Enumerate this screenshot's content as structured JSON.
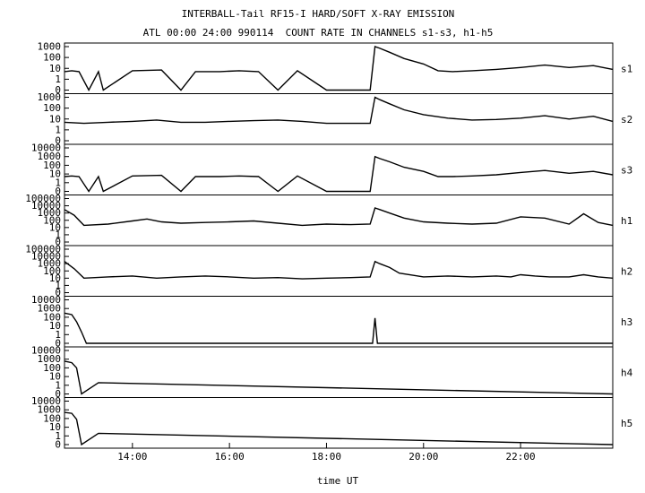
{
  "chart_data": {
    "type": "line",
    "title": "INTERBALL-Tail RF15-I HARD/SOFT X-RAY EMISSION",
    "subtitle": "ATL 00:00 24:00 990114  COUNT RATE IN CHANNELS s1-s3, h1-h5",
    "xlabel": "time UT",
    "x_ticks": [
      "14:00",
      "16:00",
      "18:00",
      "20:00",
      "22:00"
    ],
    "x_tick_hours": [
      14,
      16,
      18,
      20,
      22
    ],
    "xlim_hours": [
      12.6,
      23.9
    ],
    "y_scale": "log",
    "grid": false,
    "panels": [
      {
        "name": "s1",
        "y_ticks": [
          "1000",
          "100",
          "10",
          "1",
          "0"
        ],
        "x_hours": [
          12.6,
          12.75,
          12.9,
          13.1,
          13.3,
          13.4,
          14.0,
          14.6,
          15.0,
          15.3,
          15.8,
          16.2,
          16.6,
          17.0,
          17.4,
          18.0,
          18.9,
          19.0,
          19.1,
          19.3,
          19.6,
          20.0,
          20.3,
          20.6,
          21.0,
          21.5,
          22.0,
          22.5,
          23.0,
          23.5,
          23.9
        ],
        "values": [
          5,
          6,
          5,
          0,
          5,
          0,
          6,
          7,
          0,
          5,
          5,
          6,
          5,
          0,
          6,
          0,
          0,
          1000,
          700,
          300,
          80,
          25,
          6,
          5,
          6,
          8,
          12,
          20,
          12,
          18,
          8
        ]
      },
      {
        "name": "s2",
        "y_ticks": [
          "1000",
          "100",
          "10",
          "1",
          "0"
        ],
        "x_hours": [
          12.6,
          13.0,
          13.5,
          14.0,
          14.5,
          15.0,
          15.5,
          16.0,
          16.5,
          17.0,
          17.5,
          18.0,
          18.9,
          19.0,
          19.1,
          19.3,
          19.6,
          20.0,
          20.5,
          21.0,
          21.5,
          22.0,
          22.5,
          23.0,
          23.5,
          23.9
        ],
        "values": [
          5,
          4,
          5,
          6,
          8,
          5,
          5,
          6,
          7,
          8,
          6,
          4,
          4,
          1000,
          600,
          250,
          70,
          25,
          12,
          8,
          9,
          12,
          20,
          10,
          18,
          6
        ]
      },
      {
        "name": "s3",
        "y_ticks": [
          "10000",
          "1000",
          "100",
          "10",
          "1",
          "0"
        ],
        "x_hours": [
          12.6,
          12.75,
          12.9,
          13.1,
          13.3,
          13.4,
          14.0,
          14.6,
          15.0,
          15.3,
          15.8,
          16.2,
          16.6,
          17.0,
          17.4,
          18.0,
          18.9,
          19.0,
          19.1,
          19.3,
          19.6,
          20.0,
          20.3,
          20.6,
          21.0,
          21.5,
          22.0,
          22.5,
          23.0,
          23.5,
          23.9
        ],
        "values": [
          5,
          6,
          5,
          0,
          5,
          0,
          6,
          7,
          0,
          5,
          5,
          6,
          5,
          0,
          6,
          0,
          0,
          1000,
          600,
          250,
          60,
          20,
          5,
          5,
          6,
          8,
          15,
          25,
          12,
          20,
          8
        ]
      },
      {
        "name": "h1",
        "y_ticks": [
          "100000",
          "10000",
          "1000",
          "100",
          "10",
          "1",
          "0"
        ],
        "x_hours": [
          12.6,
          12.8,
          13.0,
          13.5,
          14.0,
          14.3,
          14.6,
          15.0,
          15.5,
          16.0,
          16.5,
          17.0,
          17.5,
          18.0,
          18.5,
          18.9,
          19.0,
          19.1,
          19.3,
          19.6,
          20.0,
          20.5,
          21.0,
          21.5,
          22.0,
          22.5,
          23.0,
          23.3,
          23.6,
          23.9
        ],
        "values": [
          3000,
          500,
          20,
          30,
          80,
          150,
          60,
          40,
          50,
          60,
          80,
          40,
          20,
          30,
          25,
          30,
          5000,
          3000,
          1000,
          200,
          60,
          40,
          30,
          40,
          300,
          200,
          30,
          800,
          50,
          20
        ]
      },
      {
        "name": "h2",
        "y_ticks": [
          "100000",
          "10000",
          "1000",
          "100",
          "10",
          "1",
          "0"
        ],
        "x_hours": [
          12.6,
          12.8,
          13.0,
          13.5,
          14.0,
          14.5,
          15.0,
          15.5,
          16.0,
          16.5,
          17.0,
          17.5,
          18.0,
          18.5,
          18.9,
          19.0,
          19.1,
          19.3,
          19.5,
          20.0,
          20.5,
          21.0,
          21.5,
          21.8,
          22.0,
          22.3,
          22.6,
          23.0,
          23.3,
          23.6,
          23.9
        ],
        "values": [
          2000,
          200,
          10,
          15,
          20,
          10,
          15,
          20,
          15,
          10,
          12,
          8,
          10,
          12,
          15,
          2000,
          1000,
          300,
          50,
          15,
          20,
          15,
          20,
          15,
          30,
          20,
          15,
          15,
          30,
          15,
          10
        ]
      },
      {
        "name": "h3",
        "y_ticks": [
          "10000",
          "1000",
          "100",
          "10",
          "1",
          "0"
        ],
        "x_hours": [
          12.6,
          12.75,
          12.85,
          12.95,
          13.05,
          18.95,
          19.0,
          19.05,
          23.9
        ],
        "values": [
          300,
          200,
          30,
          2,
          0,
          0,
          80,
          0,
          0
        ]
      },
      {
        "name": "h4",
        "y_ticks": [
          "10000",
          "1000",
          "100",
          "10",
          "1",
          "0"
        ],
        "x_hours": [
          12.6,
          12.75,
          12.85,
          12.95,
          13.3,
          23.9
        ],
        "values": [
          600,
          400,
          100,
          0,
          2,
          0
        ]
      },
      {
        "name": "h5",
        "y_ticks": [
          "10000",
          "1000",
          "100",
          "10",
          "1",
          "0"
        ],
        "x_hours": [
          12.6,
          12.75,
          12.85,
          12.95,
          13.3,
          23.9
        ],
        "values": [
          500,
          400,
          80,
          0,
          2,
          0
        ]
      }
    ]
  }
}
